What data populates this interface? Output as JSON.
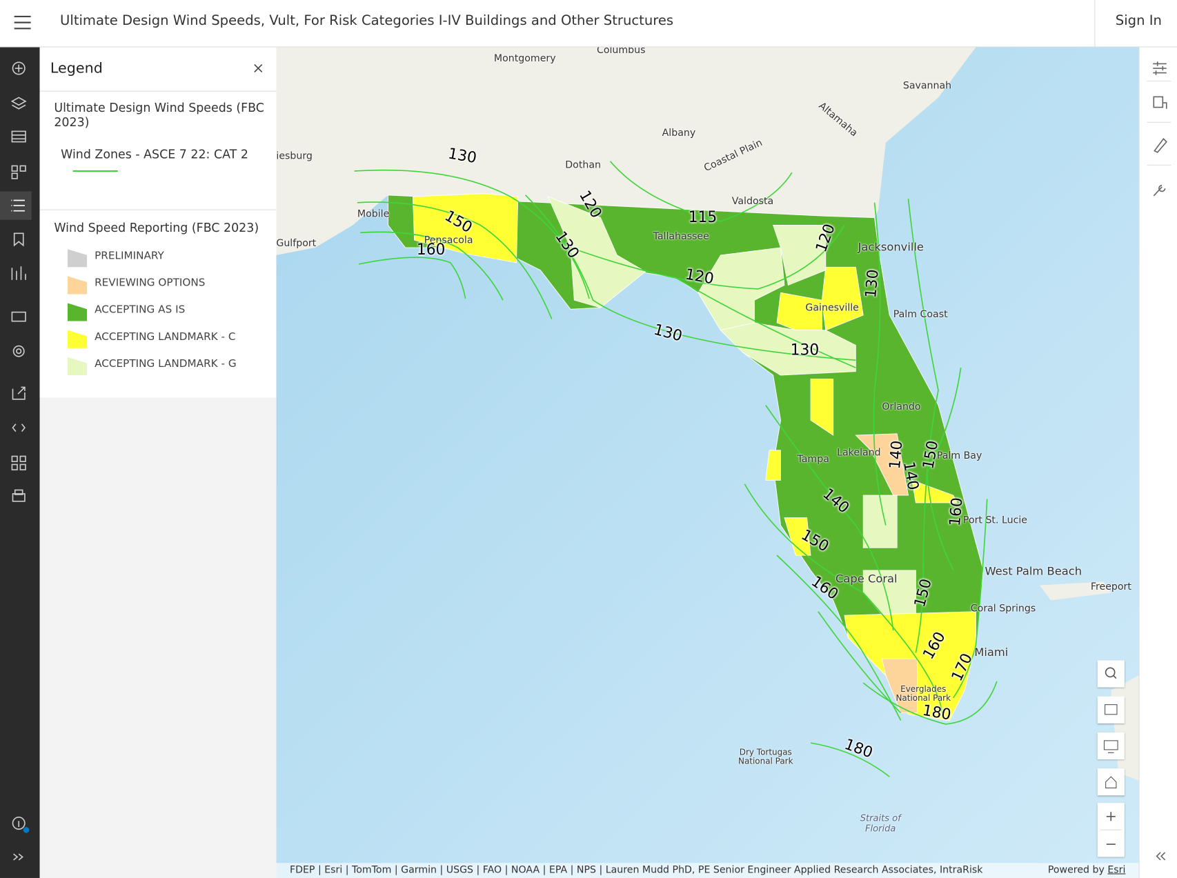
{
  "header": {
    "title": "Ultimate Design Wind Speeds, Vult, For Risk Categories I-IV Buildings and Other Structures",
    "sign_in": "Sign In"
  },
  "legend": {
    "title": "Legend",
    "layer1": {
      "title": "Ultimate Design Wind Speeds (FBC 2023)",
      "sublayer": "Wind Zones - ASCE 7 22: CAT 2",
      "line_color": "#3fd43a"
    },
    "layer2": {
      "title": "Wind Speed Reporting (FBC 2023)",
      "items": [
        {
          "label": "PRELIMINARY",
          "color": "#cfcfcf"
        },
        {
          "label": "REVIEWING OPTIONS",
          "color": "#fdd49a"
        },
        {
          "label": "ACCEPTING AS IS",
          "color": "#5ab52e"
        },
        {
          "label": "ACCEPTING LANDMARK - C",
          "color": "#ffff33"
        },
        {
          "label": "ACCEPTING LANDMARK - G",
          "color": "#e6f7c0"
        }
      ]
    }
  },
  "map": {
    "places": [
      "Montgomery",
      "Columbus",
      "Savannah",
      "Albany",
      "Dothan",
      "Coastal Plain",
      "Altamaha",
      "Valdosta",
      "Mobile",
      "iesburg",
      "Gulfport",
      "Jacksonville",
      "Tallahassee",
      "Pensacola",
      "Gainesville",
      "Palm Coast",
      "Orlando",
      "Palm Bay",
      "Lakeland",
      "Tampa",
      "Port St. Lucie",
      "West Palm Beach",
      "Freeport",
      "Cape Coral",
      "Coral Springs",
      "Miami",
      "Everglades National Park",
      "Dry Tortugas National Park",
      "Straits of Florida"
    ],
    "contours": [
      "130",
      "120",
      "115",
      "150",
      "160",
      "130",
      "120",
      "120",
      "130",
      "130",
      "130",
      "140",
      "150",
      "140",
      "140",
      "160",
      "150",
      "160",
      "150",
      "160",
      "170",
      "180",
      "180"
    ],
    "attribution": "FDEP | Esri | TomTom | Garmin | USGS | FAO | NOAA | EPA | NPS | Lauren Mudd PhD, PE Senior Engineer Applied Research Associates, IntraRisk",
    "powered_by": "Powered by",
    "esri": "Esri"
  }
}
